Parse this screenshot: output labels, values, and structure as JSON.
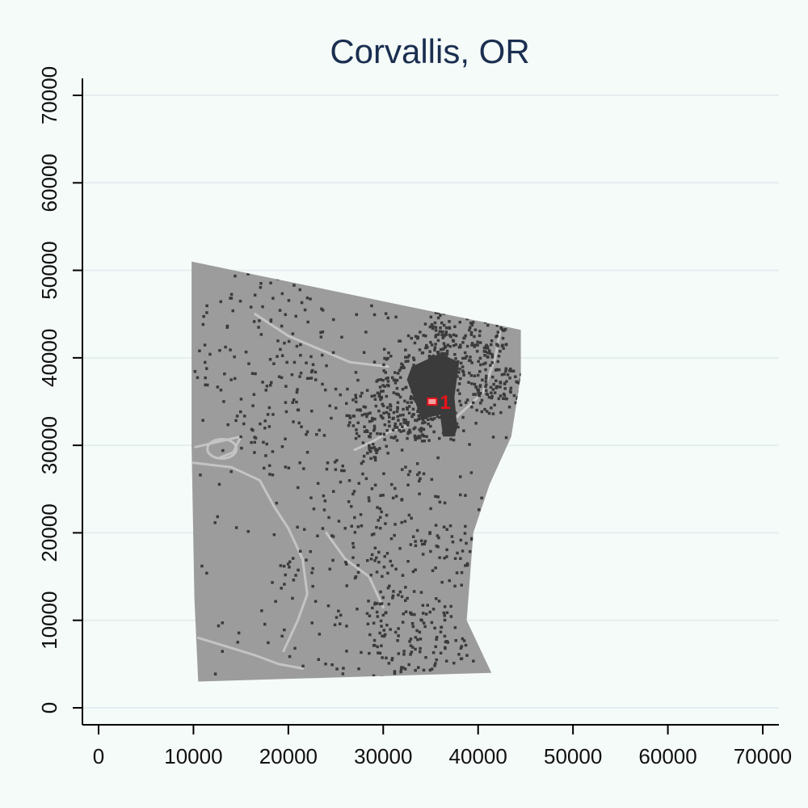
{
  "chart_data": {
    "type": "scatter",
    "title": "Corvallis, OR",
    "xlabel": "",
    "ylabel": "",
    "xlim": [
      -2000,
      72000
    ],
    "ylim": [
      -2000,
      72000
    ],
    "x_ticks": [
      0,
      10000,
      20000,
      30000,
      40000,
      50000,
      60000,
      70000
    ],
    "y_ticks": [
      0,
      10000,
      20000,
      30000,
      40000,
      50000,
      60000,
      70000
    ],
    "x_tick_labels": [
      "0",
      "10000",
      "20000",
      "30000",
      "40000",
      "50000",
      "60000",
      "70000"
    ],
    "y_tick_labels": [
      "0",
      "10000",
      "20000",
      "30000",
      "40000",
      "50000",
      "60000",
      "70000"
    ],
    "grid": "horizontal",
    "colors": {
      "background": "#f5fbf8",
      "grid": "#e4eef0",
      "region_fill": "#9c9c9c",
      "developed": "#3b3b3b",
      "water": "#c4c4c4",
      "marker": "#e8141b",
      "title": "#1a2e50"
    },
    "study_area": {
      "outline": [
        [
          9800,
          51000
        ],
        [
          44500,
          43200
        ],
        [
          44500,
          38000
        ],
        [
          43500,
          31000
        ],
        [
          41200,
          25500
        ],
        [
          39500,
          20000
        ],
        [
          38800,
          10000
        ],
        [
          41400,
          4000
        ],
        [
          10500,
          3000
        ],
        [
          10100,
          12500
        ],
        [
          9800,
          30000
        ]
      ]
    },
    "developed_core": {
      "outline": [
        [
          33000,
          39000
        ],
        [
          36000,
          40500
        ],
        [
          38000,
          39500
        ],
        [
          37500,
          35500
        ],
        [
          37800,
          32000
        ],
        [
          37500,
          31000
        ],
        [
          36300,
          31000
        ],
        [
          36000,
          33500
        ],
        [
          34000,
          33000
        ],
        [
          33200,
          35500
        ],
        [
          32500,
          37500
        ]
      ]
    },
    "markers": [
      {
        "label": "1",
        "x": 35200,
        "y": 35000
      }
    ]
  }
}
